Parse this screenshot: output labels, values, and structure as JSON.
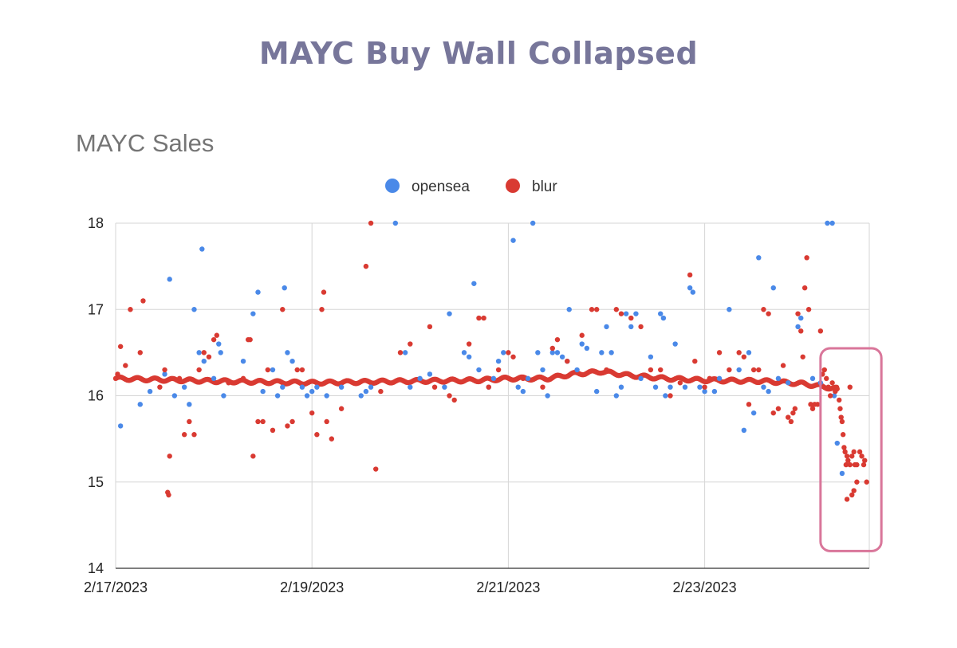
{
  "headline": "MAYC Buy Wall Collapsed",
  "chart_data": {
    "type": "scatter",
    "title": "MAYC Sales",
    "xlabel": "",
    "ylabel": "",
    "x_type": "date",
    "xlim": [
      "2/17/2023",
      "2/24/2023 19:00"
    ],
    "ylim": [
      14,
      18
    ],
    "x_ticks": [
      "2/17/2023",
      "2/19/2023",
      "2/21/2023",
      "2/23/2023"
    ],
    "y_ticks": [
      14,
      15,
      16,
      17,
      18
    ],
    "grid": true,
    "legend_position": "top-center",
    "annotation": {
      "type": "highlight-box",
      "color": "#d9769a",
      "x_from_day": 7.18,
      "x_to_day": 7.8,
      "y_range": [
        14.2,
        16.55
      ]
    },
    "x_unit": "days since 2/17/2023",
    "series": [
      {
        "name": "opensea",
        "color": "#4a89e8",
        "points": [
          [
            0.05,
            15.65
          ],
          [
            0.25,
            15.9
          ],
          [
            0.35,
            16.05
          ],
          [
            0.5,
            16.25
          ],
          [
            0.55,
            17.35
          ],
          [
            0.6,
            16.0
          ],
          [
            0.7,
            16.1
          ],
          [
            0.75,
            15.9
          ],
          [
            0.85,
            16.5
          ],
          [
            0.8,
            17.0
          ],
          [
            0.9,
            16.4
          ],
          [
            0.88,
            17.7
          ],
          [
            1.0,
            16.2
          ],
          [
            1.05,
            16.6
          ],
          [
            1.07,
            16.5
          ],
          [
            1.1,
            16.0
          ],
          [
            1.3,
            16.4
          ],
          [
            1.4,
            16.95
          ],
          [
            1.5,
            16.05
          ],
          [
            1.45,
            17.2
          ],
          [
            1.6,
            16.3
          ],
          [
            1.65,
            16.0
          ],
          [
            1.7,
            16.1
          ],
          [
            1.75,
            16.5
          ],
          [
            1.72,
            17.25
          ],
          [
            1.8,
            16.4
          ],
          [
            1.9,
            16.1
          ],
          [
            1.95,
            16.0
          ],
          [
            2.0,
            16.05
          ],
          [
            2.05,
            16.1
          ],
          [
            2.15,
            16.0
          ],
          [
            2.3,
            16.1
          ],
          [
            2.5,
            16.0
          ],
          [
            2.55,
            16.05
          ],
          [
            2.6,
            16.1
          ],
          [
            2.85,
            18.0
          ],
          [
            2.95,
            16.5
          ],
          [
            3.0,
            16.1
          ],
          [
            3.1,
            16.2
          ],
          [
            3.2,
            16.25
          ],
          [
            3.35,
            16.1
          ],
          [
            3.4,
            16.95
          ],
          [
            3.55,
            16.5
          ],
          [
            3.6,
            16.45
          ],
          [
            3.65,
            17.3
          ],
          [
            3.7,
            16.3
          ],
          [
            3.8,
            16.1
          ],
          [
            3.85,
            16.2
          ],
          [
            3.9,
            16.4
          ],
          [
            3.95,
            16.5
          ],
          [
            4.05,
            17.8
          ],
          [
            4.1,
            16.1
          ],
          [
            4.15,
            16.05
          ],
          [
            4.2,
            16.2
          ],
          [
            4.25,
            18.0
          ],
          [
            4.3,
            16.5
          ],
          [
            4.35,
            16.3
          ],
          [
            4.4,
            16.0
          ],
          [
            4.45,
            16.5
          ],
          [
            4.5,
            16.5
          ],
          [
            4.55,
            16.45
          ],
          [
            4.6,
            16.4
          ],
          [
            4.62,
            17.0
          ],
          [
            4.7,
            16.3
          ],
          [
            4.75,
            16.6
          ],
          [
            4.8,
            16.55
          ],
          [
            4.9,
            16.05
          ],
          [
            4.95,
            16.5
          ],
          [
            5.0,
            16.8
          ],
          [
            5.05,
            16.5
          ],
          [
            5.1,
            16.0
          ],
          [
            5.15,
            16.1
          ],
          [
            5.2,
            16.95
          ],
          [
            5.25,
            16.8
          ],
          [
            5.3,
            16.95
          ],
          [
            5.35,
            16.2
          ],
          [
            5.45,
            16.45
          ],
          [
            5.5,
            16.1
          ],
          [
            5.55,
            16.95
          ],
          [
            5.58,
            16.9
          ],
          [
            5.6,
            16.0
          ],
          [
            5.65,
            16.1
          ],
          [
            5.7,
            16.6
          ],
          [
            5.8,
            16.1
          ],
          [
            5.85,
            17.25
          ],
          [
            5.88,
            17.2
          ],
          [
            5.95,
            16.1
          ],
          [
            6.0,
            16.05
          ],
          [
            6.1,
            16.05
          ],
          [
            6.15,
            16.2
          ],
          [
            6.25,
            17.0
          ],
          [
            6.35,
            16.3
          ],
          [
            6.4,
            15.6
          ],
          [
            6.45,
            16.5
          ],
          [
            6.5,
            15.8
          ],
          [
            6.55,
            17.6
          ],
          [
            6.6,
            16.1
          ],
          [
            6.65,
            16.05
          ],
          [
            6.7,
            17.25
          ],
          [
            6.75,
            16.2
          ],
          [
            6.85,
            16.15
          ],
          [
            6.95,
            16.8
          ],
          [
            6.98,
            16.9
          ],
          [
            7.1,
            16.2
          ],
          [
            7.18,
            16.15
          ],
          [
            7.25,
            18.0
          ],
          [
            7.3,
            18.0
          ],
          [
            7.32,
            16.0
          ],
          [
            7.35,
            15.45
          ],
          [
            7.4,
            15.1
          ]
        ]
      },
      {
        "name": "blur",
        "color": "#d93a32",
        "trend": [
          [
            0,
            16.2
          ],
          [
            1,
            16.17
          ],
          [
            2,
            16.15
          ],
          [
            3,
            16.17
          ],
          [
            3.7,
            16.18
          ],
          [
            4,
            16.2
          ],
          [
            4.4,
            16.2
          ],
          [
            4.65,
            16.25
          ],
          [
            4.95,
            16.28
          ],
          [
            5.2,
            16.24
          ],
          [
            5.6,
            16.2
          ],
          [
            6.0,
            16.18
          ],
          [
            6.6,
            16.17
          ],
          [
            7.0,
            16.14
          ],
          [
            7.35,
            16.08
          ]
        ],
        "points": [
          [
            0.02,
            16.25
          ],
          [
            0.05,
            16.57
          ],
          [
            0.1,
            16.35
          ],
          [
            0.15,
            17.0
          ],
          [
            0.25,
            16.5
          ],
          [
            0.28,
            17.1
          ],
          [
            0.45,
            16.1
          ],
          [
            0.5,
            16.3
          ],
          [
            0.55,
            15.3
          ],
          [
            0.53,
            14.88
          ],
          [
            0.54,
            14.85
          ],
          [
            0.65,
            16.2
          ],
          [
            0.7,
            15.55
          ],
          [
            0.75,
            15.7
          ],
          [
            0.8,
            15.55
          ],
          [
            0.85,
            16.3
          ],
          [
            0.9,
            16.5
          ],
          [
            0.95,
            16.45
          ],
          [
            1.0,
            16.65
          ],
          [
            1.03,
            16.7
          ],
          [
            1.15,
            16.15
          ],
          [
            1.3,
            16.2
          ],
          [
            1.35,
            16.65
          ],
          [
            1.37,
            16.65
          ],
          [
            1.4,
            15.3
          ],
          [
            1.45,
            15.7
          ],
          [
            1.5,
            15.7
          ],
          [
            1.55,
            16.3
          ],
          [
            1.6,
            15.6
          ],
          [
            1.7,
            17.0
          ],
          [
            1.75,
            15.65
          ],
          [
            1.8,
            15.7
          ],
          [
            1.85,
            16.3
          ],
          [
            1.9,
            16.3
          ],
          [
            2.0,
            15.8
          ],
          [
            2.05,
            15.55
          ],
          [
            2.1,
            17.0
          ],
          [
            2.12,
            17.2
          ],
          [
            2.15,
            15.7
          ],
          [
            2.2,
            15.5
          ],
          [
            2.3,
            15.85
          ],
          [
            2.55,
            17.5
          ],
          [
            2.6,
            18.0
          ],
          [
            2.65,
            15.15
          ],
          [
            2.7,
            16.05
          ],
          [
            2.9,
            16.5
          ],
          [
            3.0,
            16.6
          ],
          [
            3.2,
            16.8
          ],
          [
            3.25,
            16.1
          ],
          [
            3.4,
            16.0
          ],
          [
            3.45,
            15.95
          ],
          [
            3.6,
            16.6
          ],
          [
            3.7,
            16.9
          ],
          [
            3.75,
            16.9
          ],
          [
            3.8,
            16.1
          ],
          [
            3.9,
            16.3
          ],
          [
            4.0,
            16.5
          ],
          [
            4.05,
            16.45
          ],
          [
            4.15,
            16.2
          ],
          [
            4.35,
            16.1
          ],
          [
            4.45,
            16.55
          ],
          [
            4.5,
            16.65
          ],
          [
            4.6,
            16.4
          ],
          [
            4.75,
            16.7
          ],
          [
            4.85,
            17.0
          ],
          [
            4.9,
            17.0
          ],
          [
            5.0,
            16.3
          ],
          [
            5.1,
            17.0
          ],
          [
            5.15,
            16.95
          ],
          [
            5.25,
            16.9
          ],
          [
            5.35,
            16.8
          ],
          [
            5.45,
            16.3
          ],
          [
            5.55,
            16.3
          ],
          [
            5.65,
            16.0
          ],
          [
            5.75,
            16.15
          ],
          [
            5.85,
            17.4
          ],
          [
            5.9,
            16.4
          ],
          [
            6.0,
            16.1
          ],
          [
            6.05,
            16.2
          ],
          [
            6.15,
            16.5
          ],
          [
            6.25,
            16.3
          ],
          [
            6.35,
            16.5
          ],
          [
            6.4,
            16.45
          ],
          [
            6.45,
            15.9
          ],
          [
            6.5,
            16.3
          ],
          [
            6.55,
            16.3
          ],
          [
            6.6,
            17.0
          ],
          [
            6.65,
            16.95
          ],
          [
            6.7,
            15.8
          ],
          [
            6.75,
            15.85
          ],
          [
            6.8,
            16.35
          ],
          [
            6.85,
            15.75
          ],
          [
            6.88,
            15.7
          ],
          [
            6.9,
            15.8
          ],
          [
            6.92,
            15.85
          ],
          [
            6.95,
            16.95
          ],
          [
            6.98,
            16.75
          ],
          [
            7.0,
            16.45
          ],
          [
            7.02,
            17.25
          ],
          [
            7.04,
            17.6
          ],
          [
            7.06,
            17.0
          ],
          [
            7.08,
            15.9
          ],
          [
            7.1,
            15.85
          ],
          [
            7.12,
            15.9
          ],
          [
            7.15,
            15.9
          ],
          [
            7.18,
            16.75
          ],
          [
            7.2,
            16.25
          ],
          [
            7.22,
            16.3
          ],
          [
            7.24,
            16.2
          ],
          [
            7.26,
            16.1
          ],
          [
            7.28,
            16.0
          ],
          [
            7.3,
            16.15
          ],
          [
            7.33,
            16.05
          ],
          [
            7.35,
            16.08
          ],
          [
            7.37,
            15.95
          ],
          [
            7.38,
            15.85
          ],
          [
            7.39,
            15.75
          ],
          [
            7.4,
            15.7
          ],
          [
            7.41,
            15.55
          ],
          [
            7.42,
            15.4
          ],
          [
            7.43,
            15.35
          ],
          [
            7.44,
            15.2
          ],
          [
            7.45,
            15.3
          ],
          [
            7.46,
            15.25
          ],
          [
            7.48,
            15.2
          ],
          [
            7.5,
            15.3
          ],
          [
            7.52,
            15.35
          ],
          [
            7.53,
            15.2
          ],
          [
            7.55,
            15.2
          ],
          [
            7.58,
            15.35
          ],
          [
            7.6,
            15.3
          ],
          [
            7.62,
            15.2
          ],
          [
            7.63,
            15.25
          ],
          [
            7.65,
            15.0
          ],
          [
            7.45,
            14.8
          ],
          [
            7.5,
            14.85
          ],
          [
            7.52,
            14.9
          ],
          [
            7.55,
            15.0
          ],
          [
            7.48,
            16.1
          ]
        ]
      }
    ]
  }
}
